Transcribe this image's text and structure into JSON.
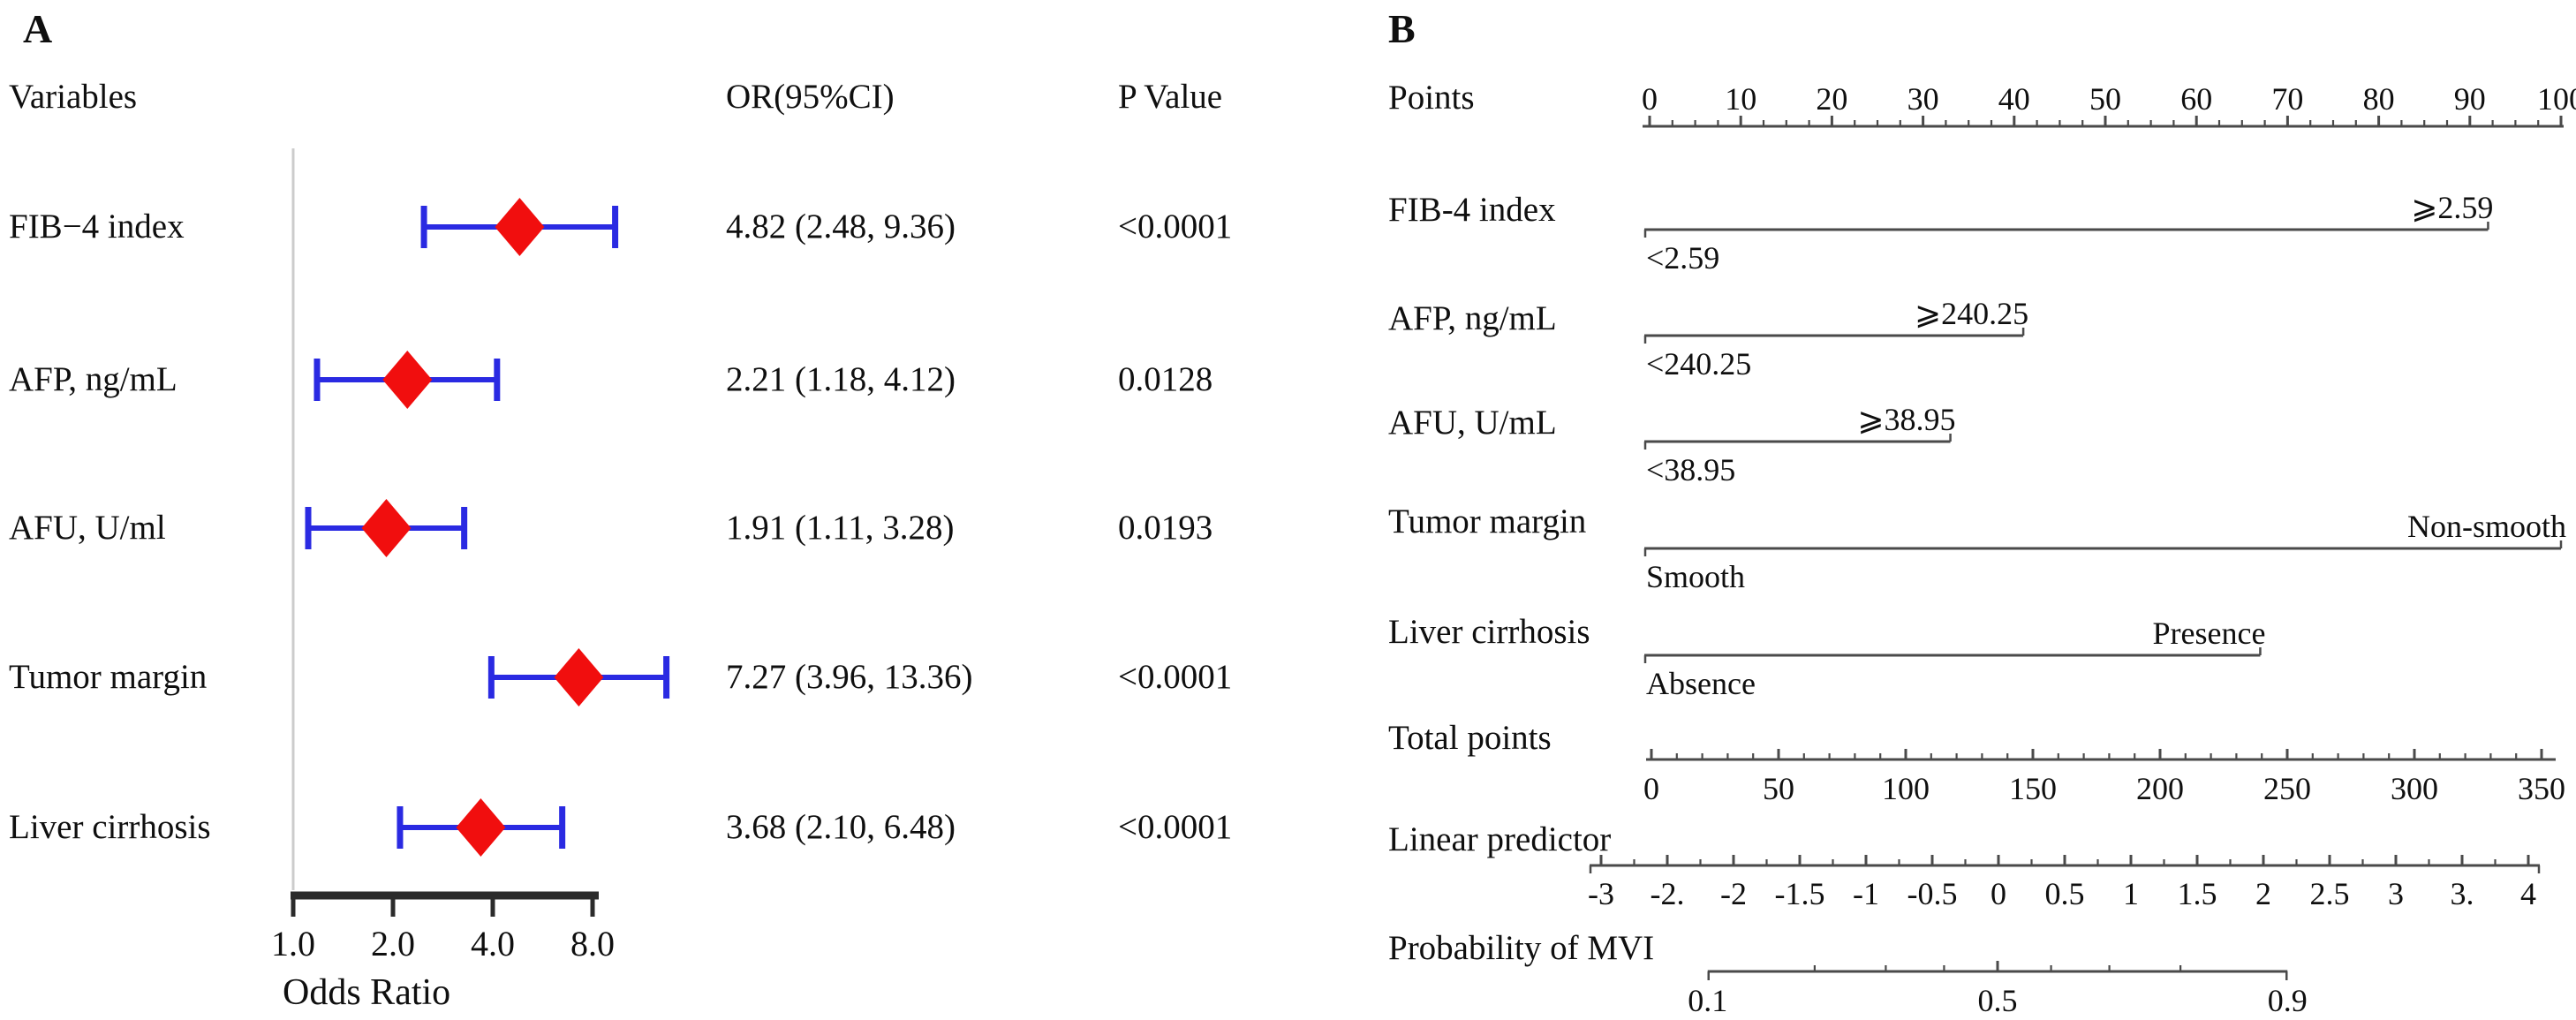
{
  "figure": {
    "background": "#ffffff",
    "text_color": "#0f0f0f"
  },
  "chart_data": [
    {
      "id": "forest-plot",
      "type": "scatter",
      "panel_label": "A",
      "columns": {
        "variables": "Variables",
        "or_ci": "OR(95%CI)",
        "p_value": "P Value"
      },
      "xlabel": "Odds Ratio",
      "x_scale": "log2",
      "x_ticks": [
        "1.0",
        "2.0",
        "4.0",
        "8.0"
      ],
      "x_tick_values": [
        1,
        2,
        4,
        8
      ],
      "xlim": [
        1,
        13.4
      ],
      "rows": [
        {
          "variable": "FIB−4 index",
          "or": 4.82,
          "ci_low": 2.48,
          "ci_high": 9.36,
          "or_ci_text": "4.82 (2.48, 9.36)",
          "p_value": "<0.0001"
        },
        {
          "variable": "AFP, ng/mL",
          "or": 2.21,
          "ci_low": 1.18,
          "ci_high": 4.12,
          "or_ci_text": "2.21 (1.18, 4.12)",
          "p_value": "0.0128"
        },
        {
          "variable": "AFU, U/ml",
          "or": 1.91,
          "ci_low": 1.11,
          "ci_high": 3.28,
          "or_ci_text": "1.91 (1.11, 3.28)",
          "p_value": "0.0193"
        },
        {
          "variable": "Tumor margin",
          "or": 7.27,
          "ci_low": 3.96,
          "ci_high": 13.36,
          "or_ci_text": "7.27 (3.96, 13.36)",
          "p_value": "<0.0001"
        },
        {
          "variable": "Liver cirrhosis",
          "or": 3.68,
          "ci_low": 2.1,
          "ci_high": 6.48,
          "or_ci_text": "3.68 (2.10, 6.48)",
          "p_value": "<0.0001"
        }
      ],
      "marker": {
        "shape": "diamond",
        "color": "#f10e0e"
      },
      "ci_color": "#2a2ae2",
      "refline_color": "#cccccc",
      "axis_color": "#2b2b2b",
      "refline_value": 1.0,
      "grid": false
    },
    {
      "id": "nomogram",
      "type": "line",
      "panel_label": "B",
      "points_axis": {
        "label": "Points",
        "min": 0,
        "max": 100,
        "major_step": 10,
        "minor_step": 2.5,
        "tick_labels": [
          "0",
          "10",
          "20",
          "30",
          "40",
          "50",
          "60",
          "70",
          "80",
          "90",
          "100"
        ]
      },
      "variables": [
        {
          "label": "FIB-4 index",
          "upper_label": "⩾2.59",
          "lower_label": "<2.59",
          "max_points": 92
        },
        {
          "label": "AFP, ng/mL",
          "upper_label": "⩾240.25",
          "lower_label": "<240.25",
          "max_points": 41
        },
        {
          "label": "AFU, U/mL",
          "upper_label": "⩾38.95",
          "lower_label": "<38.95",
          "max_points": 33
        },
        {
          "label": "Tumor margin",
          "upper_label": "Non-smooth",
          "lower_label": "Smooth",
          "max_points": 100
        },
        {
          "label": "Liver cirrhosis",
          "upper_label": "Presence",
          "lower_label": "Absence",
          "max_points": 67
        }
      ],
      "total_points_axis": {
        "label": "Total points",
        "min": 0,
        "max": 350,
        "major_step": 50,
        "minor_step": 10,
        "tick_labels": [
          "0",
          "50",
          "100",
          "150",
          "200",
          "250",
          "300",
          "350"
        ]
      },
      "linear_predictor_axis": {
        "label": "Linear predictor",
        "min": -3,
        "max": 4,
        "major_step": 0.5,
        "minor_step": 0.25,
        "tick_labels": [
          "-3",
          "-2.",
          "-2",
          "-1.5",
          "-1",
          "-0.5",
          "0",
          "0.5",
          "1",
          "1.5",
          "2",
          "2.5",
          "3",
          "3.",
          "4"
        ]
      },
      "probability_axis": {
        "label": "Probability of MVI",
        "scale": "logit",
        "tick_labels": [
          "0.1",
          "0.5",
          "0.9"
        ],
        "tick_values": [
          0.1,
          0.5,
          0.9
        ],
        "minor_values": [
          0.2,
          0.3,
          0.4,
          0.6,
          0.7,
          0.8
        ]
      },
      "axis_color": "#4a4a4a",
      "grid": false
    }
  ]
}
